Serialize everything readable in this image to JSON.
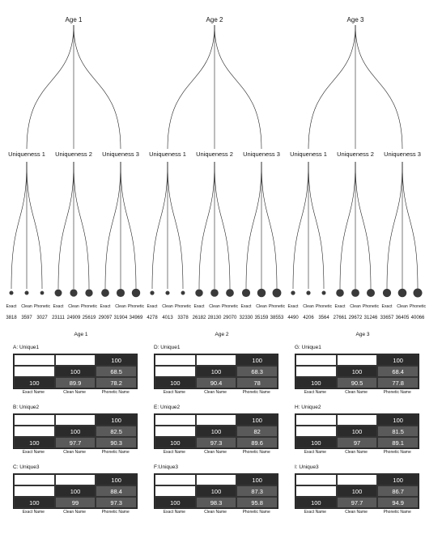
{
  "trees": [
    {
      "age": "Age 1",
      "groups": [
        {
          "name": "Uniqueness 1",
          "leaves": [
            {
              "label": "Exact",
              "value": "3818",
              "n": 3818
            },
            {
              "label": "Clean",
              "value": "3597",
              "n": 3597
            },
            {
              "label": "Phonetic",
              "value": "3027",
              "n": 3027
            }
          ]
        },
        {
          "name": "Uniqueness 2",
          "leaves": [
            {
              "label": "Exact",
              "value": "23111",
              "n": 23111
            },
            {
              "label": "Clean",
              "value": "24909",
              "n": 24909
            },
            {
              "label": "Phonetic",
              "value": "25619",
              "n": 25619
            }
          ]
        },
        {
          "name": "Uniqueness 3",
          "leaves": [
            {
              "label": "Exact",
              "value": "29097",
              "n": 29097
            },
            {
              "label": "Clean",
              "value": "31904",
              "n": 31904
            },
            {
              "label": "Phonetic",
              "value": "34969",
              "n": 34969
            }
          ]
        }
      ]
    },
    {
      "age": "Age 2",
      "groups": [
        {
          "name": "Uniqueness 1",
          "leaves": [
            {
              "label": "Exact",
              "value": "4278",
              "n": 4278
            },
            {
              "label": "Clean",
              "value": "4013",
              "n": 4013
            },
            {
              "label": "Phonetic",
              "value": "3378",
              "n": 3378
            }
          ]
        },
        {
          "name": "Uniqueness 2",
          "leaves": [
            {
              "label": "Exact",
              "value": "26182",
              "n": 26182
            },
            {
              "label": "Clean",
              "value": "28130",
              "n": 28130
            },
            {
              "label": "Phonetic",
              "value": "29070",
              "n": 29070
            }
          ]
        },
        {
          "name": "Uniqueness 3",
          "leaves": [
            {
              "label": "Exact",
              "value": "32330",
              "n": 32330
            },
            {
              "label": "Clean",
              "value": "35159",
              "n": 35159
            },
            {
              "label": "Phonetic",
              "value": "38553",
              "n": 38553
            }
          ]
        }
      ]
    },
    {
      "age": "Age 3",
      "groups": [
        {
          "name": "Uniqueness 1",
          "leaves": [
            {
              "label": "Exact",
              "value": "4490",
              "n": 4490
            },
            {
              "label": "Clean",
              "value": "4206",
              "n": 4206
            },
            {
              "label": "Phonetic",
              "value": "3564",
              "n": 3564
            }
          ]
        },
        {
          "name": "Uniqueness 2",
          "leaves": [
            {
              "label": "Exact",
              "value": "27661",
              "n": 27661
            },
            {
              "label": "Clean",
              "value": "29672",
              "n": 29672
            },
            {
              "label": "Phonetic",
              "value": "31246",
              "n": 31246
            }
          ]
        },
        {
          "name": "Uniqueness 3",
          "leaves": [
            {
              "label": "Exact",
              "value": "33657",
              "n": 33657
            },
            {
              "label": "Clean",
              "value": "36405",
              "n": 36405
            },
            {
              "label": "Phonetic",
              "value": "40066",
              "n": 40066
            }
          ]
        }
      ]
    }
  ],
  "matrices": [
    {
      "age": "Age 1",
      "items": [
        {
          "title": "A: Unique1",
          "r0": "100",
          "r1": [
            "100",
            "68.5"
          ],
          "r2": [
            "100",
            "89.9",
            "78.2"
          ]
        },
        {
          "title": "B: Unique2",
          "r0": "100",
          "r1": [
            "100",
            "82.5"
          ],
          "r2": [
            "100",
            "97.7",
            "90.3"
          ]
        },
        {
          "title": "C: Unique3",
          "r0": "100",
          "r1": [
            "100",
            "88.4"
          ],
          "r2": [
            "100",
            "99",
            "97.3"
          ]
        }
      ]
    },
    {
      "age": "Age 2",
      "items": [
        {
          "title": "D: Unique1",
          "r0": "100",
          "r1": [
            "100",
            "68.3"
          ],
          "r2": [
            "100",
            "90.4",
            "78"
          ]
        },
        {
          "title": "E: Unique2",
          "r0": "100",
          "r1": [
            "100",
            "82"
          ],
          "r2": [
            "100",
            "97.3",
            "89.6"
          ]
        },
        {
          "title": "F:Unique3",
          "r0": "100",
          "r1": [
            "100",
            "87.3"
          ],
          "r2": [
            "100",
            "98.3",
            "95.8"
          ]
        }
      ]
    },
    {
      "age": "Age 3",
      "items": [
        {
          "title": "G: Unique1",
          "r0": "100",
          "r1": [
            "100",
            "68.4"
          ],
          "r2": [
            "100",
            "90.5",
            "77.8"
          ]
        },
        {
          "title": "H: Unique2",
          "r0": "100",
          "r1": [
            "100",
            "81.5"
          ],
          "r2": [
            "100",
            "97",
            "89.1"
          ]
        },
        {
          "title": "I: Unique3",
          "r0": "100",
          "r1": [
            "100",
            "86.7"
          ],
          "r2": [
            "100",
            "97.7",
            "94.9"
          ]
        }
      ]
    }
  ],
  "column_labels": [
    "Exact Name",
    "Clean Name",
    "Phonetic Name"
  ]
}
